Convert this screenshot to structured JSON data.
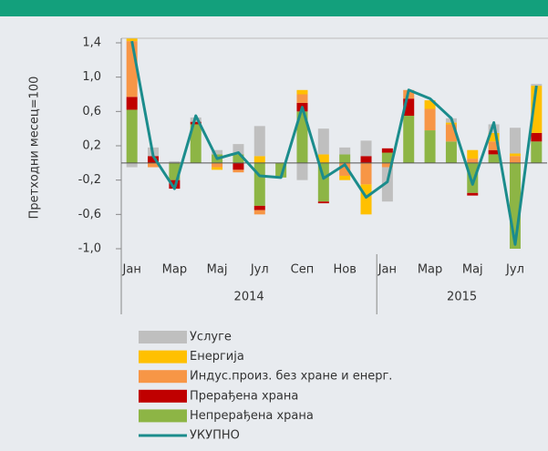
{
  "chart_data": {
    "type": "bar",
    "stacked": true,
    "ylabel": "Претходни месец=100",
    "categories": [
      "Јан",
      null,
      "Мар",
      null,
      "Мај",
      null,
      "Јул",
      null,
      "Сеп",
      null,
      "Нов",
      null,
      "Јан",
      null,
      "Мар",
      null,
      "Мај",
      null,
      "Јул",
      null
    ],
    "groups": [
      {
        "label": "2014",
        "span": 12
      },
      {
        "label": "2015",
        "span": 8
      }
    ],
    "ylim": [
      -1.0,
      1.4
    ],
    "yticks": [
      {
        "value": -1.0,
        "label": "-1,0"
      },
      {
        "value": -0.6,
        "label": "-0,6"
      },
      {
        "value": -0.2,
        "label": "-0,2"
      },
      {
        "value": 0.2,
        "label": "0,2"
      },
      {
        "value": 0.6,
        "label": "0,6"
      },
      {
        "value": 1.0,
        "label": "1,0"
      },
      {
        "value": 1.4,
        "label": "1,4"
      }
    ],
    "series": [
      {
        "name": "Услуге",
        "type": "bar",
        "color": "#bfbfbf",
        "values": [
          -0.05,
          0.1,
          0.02,
          0.05,
          0.05,
          0.12,
          0.35,
          0.0,
          -0.2,
          0.3,
          0.08,
          0.18,
          -0.4,
          0.0,
          0.0,
          0.05,
          0.0,
          0.1,
          0.3,
          0.02
        ]
      },
      {
        "name": "Енергија",
        "type": "bar",
        "color": "#ffc000",
        "values": [
          0.03,
          0.0,
          0.0,
          0.0,
          -0.03,
          0.0,
          0.08,
          0.0,
          0.05,
          0.1,
          -0.05,
          -0.35,
          0.0,
          0.0,
          0.1,
          0.02,
          0.1,
          0.1,
          0.03,
          0.55
        ]
      },
      {
        "name": "Индус.произ. без хране и енерг.",
        "type": "bar",
        "color": "#f79646",
        "values": [
          0.65,
          -0.05,
          0.0,
          0.0,
          -0.05,
          -0.03,
          -0.05,
          0.0,
          0.1,
          0.0,
          -0.15,
          -0.25,
          -0.05,
          0.1,
          0.25,
          0.2,
          0.05,
          0.1,
          0.08,
          0.0
        ]
      },
      {
        "name": "Прерађена храна",
        "type": "bar",
        "color": "#c00000",
        "values": [
          0.15,
          0.08,
          -0.1,
          0.03,
          0.0,
          -0.08,
          -0.05,
          0.0,
          0.1,
          -0.02,
          0.0,
          0.08,
          0.05,
          0.2,
          0.0,
          0.0,
          -0.03,
          0.05,
          0.0,
          0.1
        ]
      },
      {
        "name": "Непрерађена храна",
        "type": "bar",
        "color": "#8db545",
        "values": [
          0.62,
          0.0,
          -0.2,
          0.45,
          0.1,
          0.1,
          -0.5,
          -0.17,
          0.6,
          -0.45,
          0.1,
          0.0,
          0.12,
          0.55,
          0.38,
          0.25,
          -0.35,
          0.1,
          -1.0,
          0.25
        ]
      },
      {
        "name": "УКУПНО",
        "type": "line",
        "color": "#1b8c8c",
        "values": [
          1.42,
          0.08,
          -0.3,
          0.55,
          0.05,
          0.12,
          -0.15,
          -0.17,
          0.65,
          -0.18,
          -0.02,
          -0.4,
          -0.22,
          0.85,
          0.75,
          0.52,
          -0.25,
          0.47,
          -0.95,
          0.9
        ]
      }
    ]
  }
}
